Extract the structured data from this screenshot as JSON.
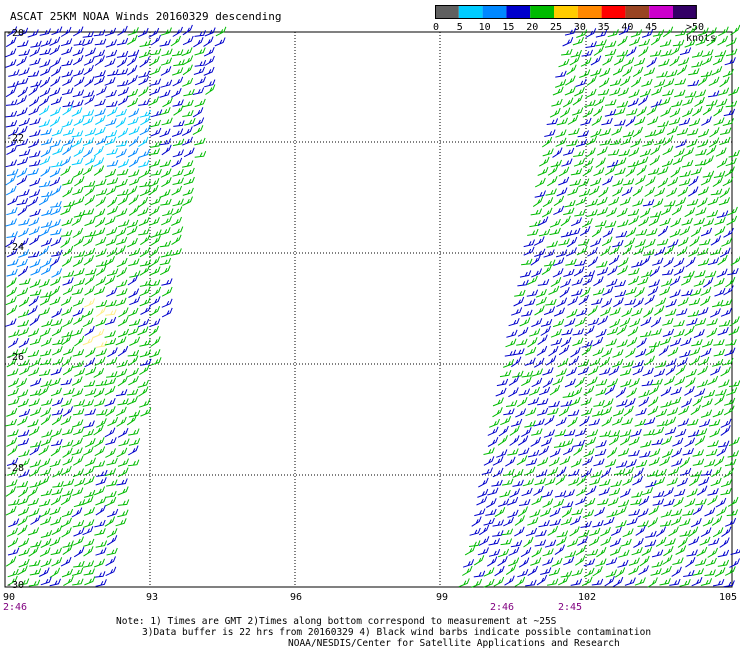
{
  "title": "ASCAT 25KM NOAA Winds 20160329 descending",
  "colorbar": {
    "unit_label": ">50 knots",
    "ticks": [
      "0",
      "5",
      "10",
      "15",
      "20",
      "25",
      "30",
      "35",
      "40",
      "45"
    ],
    "colors": [
      "#606060",
      "#00ccff",
      "#0088ff",
      "#0000cc",
      "#00bb00",
      "#ffcc00",
      "#ff8800",
      "#ff0000",
      "#994422",
      "#cc00cc",
      "#330066"
    ]
  },
  "map": {
    "lat_labels": [
      "-20",
      "-22",
      "-24",
      "-26",
      "-28",
      "-30"
    ],
    "lon_labels": [
      "90",
      "93",
      "96",
      "99",
      "102",
      "105"
    ],
    "time_labels": [
      "2:46",
      "2:46",
      "2:45"
    ]
  },
  "notes": {
    "line1": "Note: 1) Times are GMT 2)Times along bottom correspond to measurement at ~25S",
    "line2": "3)Data buffer is 22 hrs from 20160329 4) Black wind barbs indicate possible contamination",
    "line3": "NOAA/NESDIS/Center for Satellite Applications and Research"
  }
}
